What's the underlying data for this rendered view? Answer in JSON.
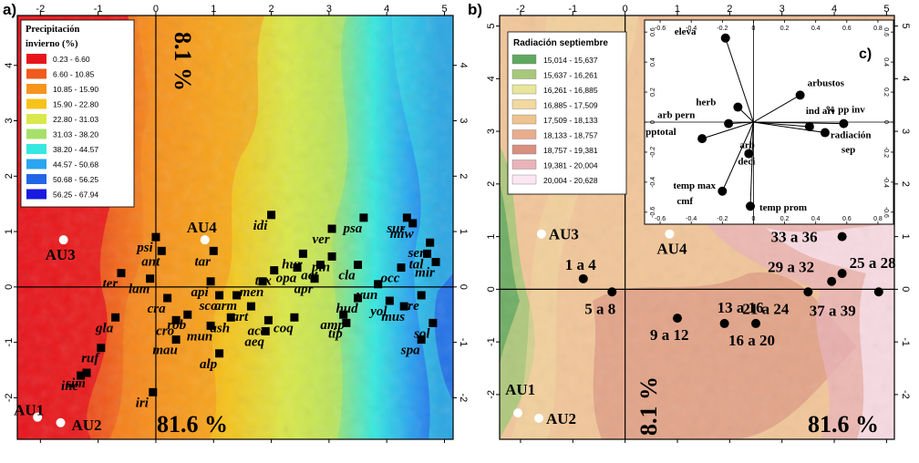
{
  "colors": {
    "precip": [
      "#e8141c",
      "#f05a1c",
      "#f7941d",
      "#f6c31a",
      "#d9e84a",
      "#a6e06a",
      "#35e8e0",
      "#2aa5f0",
      "#2266e8",
      "#1a1ae0"
    ],
    "radiation": [
      "#5fa85f",
      "#a7c87a",
      "#e7e69a",
      "#f3d9a0",
      "#eec38e",
      "#e9ad8e",
      "#d99080",
      "#e9b3b9",
      "#fbe6f2"
    ]
  },
  "panel_a": {
    "letter": "a)",
    "x_ticks": [
      "-2",
      "-1",
      "0",
      "1",
      "2",
      "3",
      "4",
      "5"
    ],
    "y_ticks": [
      "4",
      "3",
      "2",
      "1",
      "0",
      "-1",
      "-2"
    ],
    "xlim": [
      -2.4,
      5.15
    ],
    "ylim": [
      -2.75,
      4.9
    ],
    "legend": {
      "title_line1": "Precipitación",
      "title_line2": "invierno (%)",
      "classes": [
        "0.23 - 6.60",
        "6.60 - 10.85",
        "10.85 - 15.90",
        "15.90 - 22.80",
        "22.80 - 31.03",
        "31.03 - 38.20",
        "38.20 - 44.57",
        "44.57 - 50.68",
        "50.68 - 56.25",
        "56.25 - 67.94"
      ]
    },
    "pct_vertical": "8.1 %",
    "pct_horizontal": "81.6 %"
  },
  "panel_b": {
    "letter": "b)",
    "x_ticks": [
      "-2",
      "-1",
      "0",
      "1",
      "2",
      "3",
      "4",
      "5"
    ],
    "y_ticks": [
      "5",
      "4",
      "3",
      "2",
      "1",
      "0",
      "-1",
      "-2"
    ],
    "xlim": [
      -2.4,
      5.15
    ],
    "ylim": [
      -2.85,
      5.2
    ],
    "legend": {
      "title": "Radiación septiembre",
      "classes": [
        "15,014 - 15,637",
        "15,637 - 16,261",
        "16,261 - 16,885",
        "16,885 - 17,509",
        "17,509 - 18,133",
        "18,133 - 18,757",
        "18,757 - 19,381",
        "19,381 - 20,004",
        "20,004 - 20,628"
      ]
    },
    "pct_vertical": "8.1 %",
    "pct_horizontal": "81.6 %"
  },
  "panel_c": {
    "letter": "c)",
    "x_ticks": [
      "-0.6",
      "-0.4",
      "-0.2",
      "0",
      "0.2",
      "0.4",
      "0.6",
      "0.8"
    ],
    "y_ticks": [
      "0.6",
      "0.4",
      "0.2",
      "0",
      "-0.2",
      "-0.4",
      "-0.6"
    ],
    "xlim": [
      -0.7,
      0.9
    ],
    "ylim": [
      -0.68,
      0.68
    ]
  },
  "chart_data": [
    {
      "type": "scatter",
      "panel": "a",
      "sites": [
        {
          "label": "AU1",
          "x": -2.05,
          "y": -2.35
        },
        {
          "label": "AU2",
          "x": -1.65,
          "y": -2.45
        },
        {
          "label": "AU3",
          "x": -1.6,
          "y": 0.85
        },
        {
          "label": "AU4",
          "x": 0.85,
          "y": 0.85
        }
      ],
      "species": [
        {
          "label": "idi",
          "x": 2.0,
          "y": 1.3
        },
        {
          "label": "psa",
          "x": 3.6,
          "y": 1.25
        },
        {
          "label": "sur",
          "x": 4.35,
          "y": 1.25
        },
        {
          "label": "miw",
          "x": 4.45,
          "y": 1.15
        },
        {
          "label": "ver",
          "x": 3.05,
          "y": 1.05
        },
        {
          "label": "sem",
          "x": 4.75,
          "y": 0.8
        },
        {
          "label": "psi",
          "x": 0.0,
          "y": 0.9
        },
        {
          "label": "tar",
          "x": 1.0,
          "y": 0.65
        },
        {
          "label": "ant",
          "x": 0.1,
          "y": 0.65
        },
        {
          "label": "hur",
          "x": 2.55,
          "y": 0.6
        },
        {
          "label": "pin",
          "x": 3.05,
          "y": 0.55
        },
        {
          "label": "tal",
          "x": 4.7,
          "y": 0.6
        },
        {
          "label": "cla",
          "x": 3.5,
          "y": 0.4
        },
        {
          "label": "tex",
          "x": 2.05,
          "y": 0.3
        },
        {
          "label": "opa",
          "x": 2.45,
          "y": 0.35
        },
        {
          "label": "aet",
          "x": 2.85,
          "y": 0.4
        },
        {
          "label": "ter",
          "x": -0.6,
          "y": 0.25
        },
        {
          "label": "occ",
          "x": 4.25,
          "y": 0.35
        },
        {
          "label": "mir",
          "x": 4.85,
          "y": 0.45
        },
        {
          "label": "lam",
          "x": -0.1,
          "y": 0.15
        },
        {
          "label": "api",
          "x": 0.95,
          "y": 0.1
        },
        {
          "label": "men",
          "x": 1.85,
          "y": 0.1
        },
        {
          "label": "apr",
          "x": 2.75,
          "y": 0.15
        },
        {
          "label": "yun",
          "x": 3.85,
          "y": 0.05
        },
        {
          "label": "arm",
          "x": 1.4,
          "y": -0.15
        },
        {
          "label": "sco",
          "x": 1.1,
          "y": -0.15
        },
        {
          "label": "cra",
          "x": 0.2,
          "y": -0.2
        },
        {
          "label": "art",
          "x": 1.65,
          "y": -0.35
        },
        {
          "label": "hud",
          "x": 3.5,
          "y": -0.2
        },
        {
          "label": "cre",
          "x": 4.6,
          "y": -0.15
        },
        {
          "label": "amp",
          "x": 3.25,
          "y": -0.5
        },
        {
          "label": "yol",
          "x": 4.05,
          "y": -0.25
        },
        {
          "label": "rob",
          "x": 0.55,
          "y": -0.5
        },
        {
          "label": "cro",
          "x": 0.35,
          "y": -0.6
        },
        {
          "label": "ash",
          "x": 1.3,
          "y": -0.55
        },
        {
          "label": "aca",
          "x": 1.95,
          "y": -0.6
        },
        {
          "label": "coq",
          "x": 2.4,
          "y": -0.55
        },
        {
          "label": "tip",
          "x": 3.3,
          "y": -0.65
        },
        {
          "label": "mus",
          "x": 4.3,
          "y": -0.35
        },
        {
          "label": "mun",
          "x": 0.95,
          "y": -0.7
        },
        {
          "label": "aeq",
          "x": 1.9,
          "y": -0.8
        },
        {
          "label": "gla",
          "x": -0.7,
          "y": -0.55
        },
        {
          "label": "mau",
          "x": 0.35,
          "y": -0.95
        },
        {
          "label": "sol",
          "x": 4.8,
          "y": -0.65
        },
        {
          "label": "ruf",
          "x": -0.95,
          "y": -1.1
        },
        {
          "label": "alp",
          "x": 1.1,
          "y": -1.2
        },
        {
          "label": "spa",
          "x": 4.6,
          "y": -0.95
        },
        {
          "label": "sim",
          "x": -1.2,
          "y": -1.55
        },
        {
          "label": "inc",
          "x": -1.3,
          "y": -1.6
        },
        {
          "label": "iri",
          "x": -0.05,
          "y": -1.9
        }
      ]
    },
    {
      "type": "scatter",
      "panel": "b",
      "sites": [
        {
          "label": "AU1",
          "x": -2.05,
          "y": -2.35
        },
        {
          "label": "AU2",
          "x": -1.65,
          "y": -2.45
        },
        {
          "label": "AU3",
          "x": -1.6,
          "y": 1.05
        },
        {
          "label": "AU4",
          "x": 0.85,
          "y": 1.05
        }
      ],
      "groups": [
        {
          "label": "1 a 4",
          "x": -0.8,
          "y": 0.2
        },
        {
          "label": "5 a 8",
          "x": -0.25,
          "y": -0.05
        },
        {
          "label": "9 a 12",
          "x": 1.0,
          "y": -0.55
        },
        {
          "label": "13 a 16",
          "x": 1.9,
          "y": -0.65
        },
        {
          "label": "16 a 20",
          "x": 2.5,
          "y": -0.65
        },
        {
          "label": "21 a 24",
          "x": 3.5,
          "y": -0.05
        },
        {
          "label": "29 a 32",
          "x": 3.95,
          "y": 0.15
        },
        {
          "label": "25 a 28",
          "x": 4.15,
          "y": 0.3
        },
        {
          "label": "33 a 36",
          "x": 4.15,
          "y": 1.0
        },
        {
          "label": "37 a 39",
          "x": 4.85,
          "y": -0.05
        }
      ]
    },
    {
      "type": "scatter",
      "panel": "c",
      "vectors": [
        {
          "label": "eleva",
          "x": -0.18,
          "y": 0.56
        },
        {
          "label": "arbustos",
          "x": 0.3,
          "y": 0.18
        },
        {
          "label": "herb",
          "x": -0.1,
          "y": 0.1
        },
        {
          "label": "ind ari",
          "x": 0.36,
          "y": -0.03
        },
        {
          "label": "% pp inv",
          "x": 0.58,
          "y": -0.01
        },
        {
          "label": "arb pern",
          "x": -0.16,
          "y": -0.01
        },
        {
          "label": "radiación sep",
          "x": 0.46,
          "y": -0.07
        },
        {
          "label": "pptotal",
          "x": -0.33,
          "y": -0.11
        },
        {
          "label": "arb deci",
          "x": -0.03,
          "y": -0.21
        },
        {
          "label": "temp max cmf",
          "x": -0.2,
          "y": -0.46
        },
        {
          "label": "temp prom",
          "x": -0.02,
          "y": -0.56
        }
      ]
    }
  ]
}
